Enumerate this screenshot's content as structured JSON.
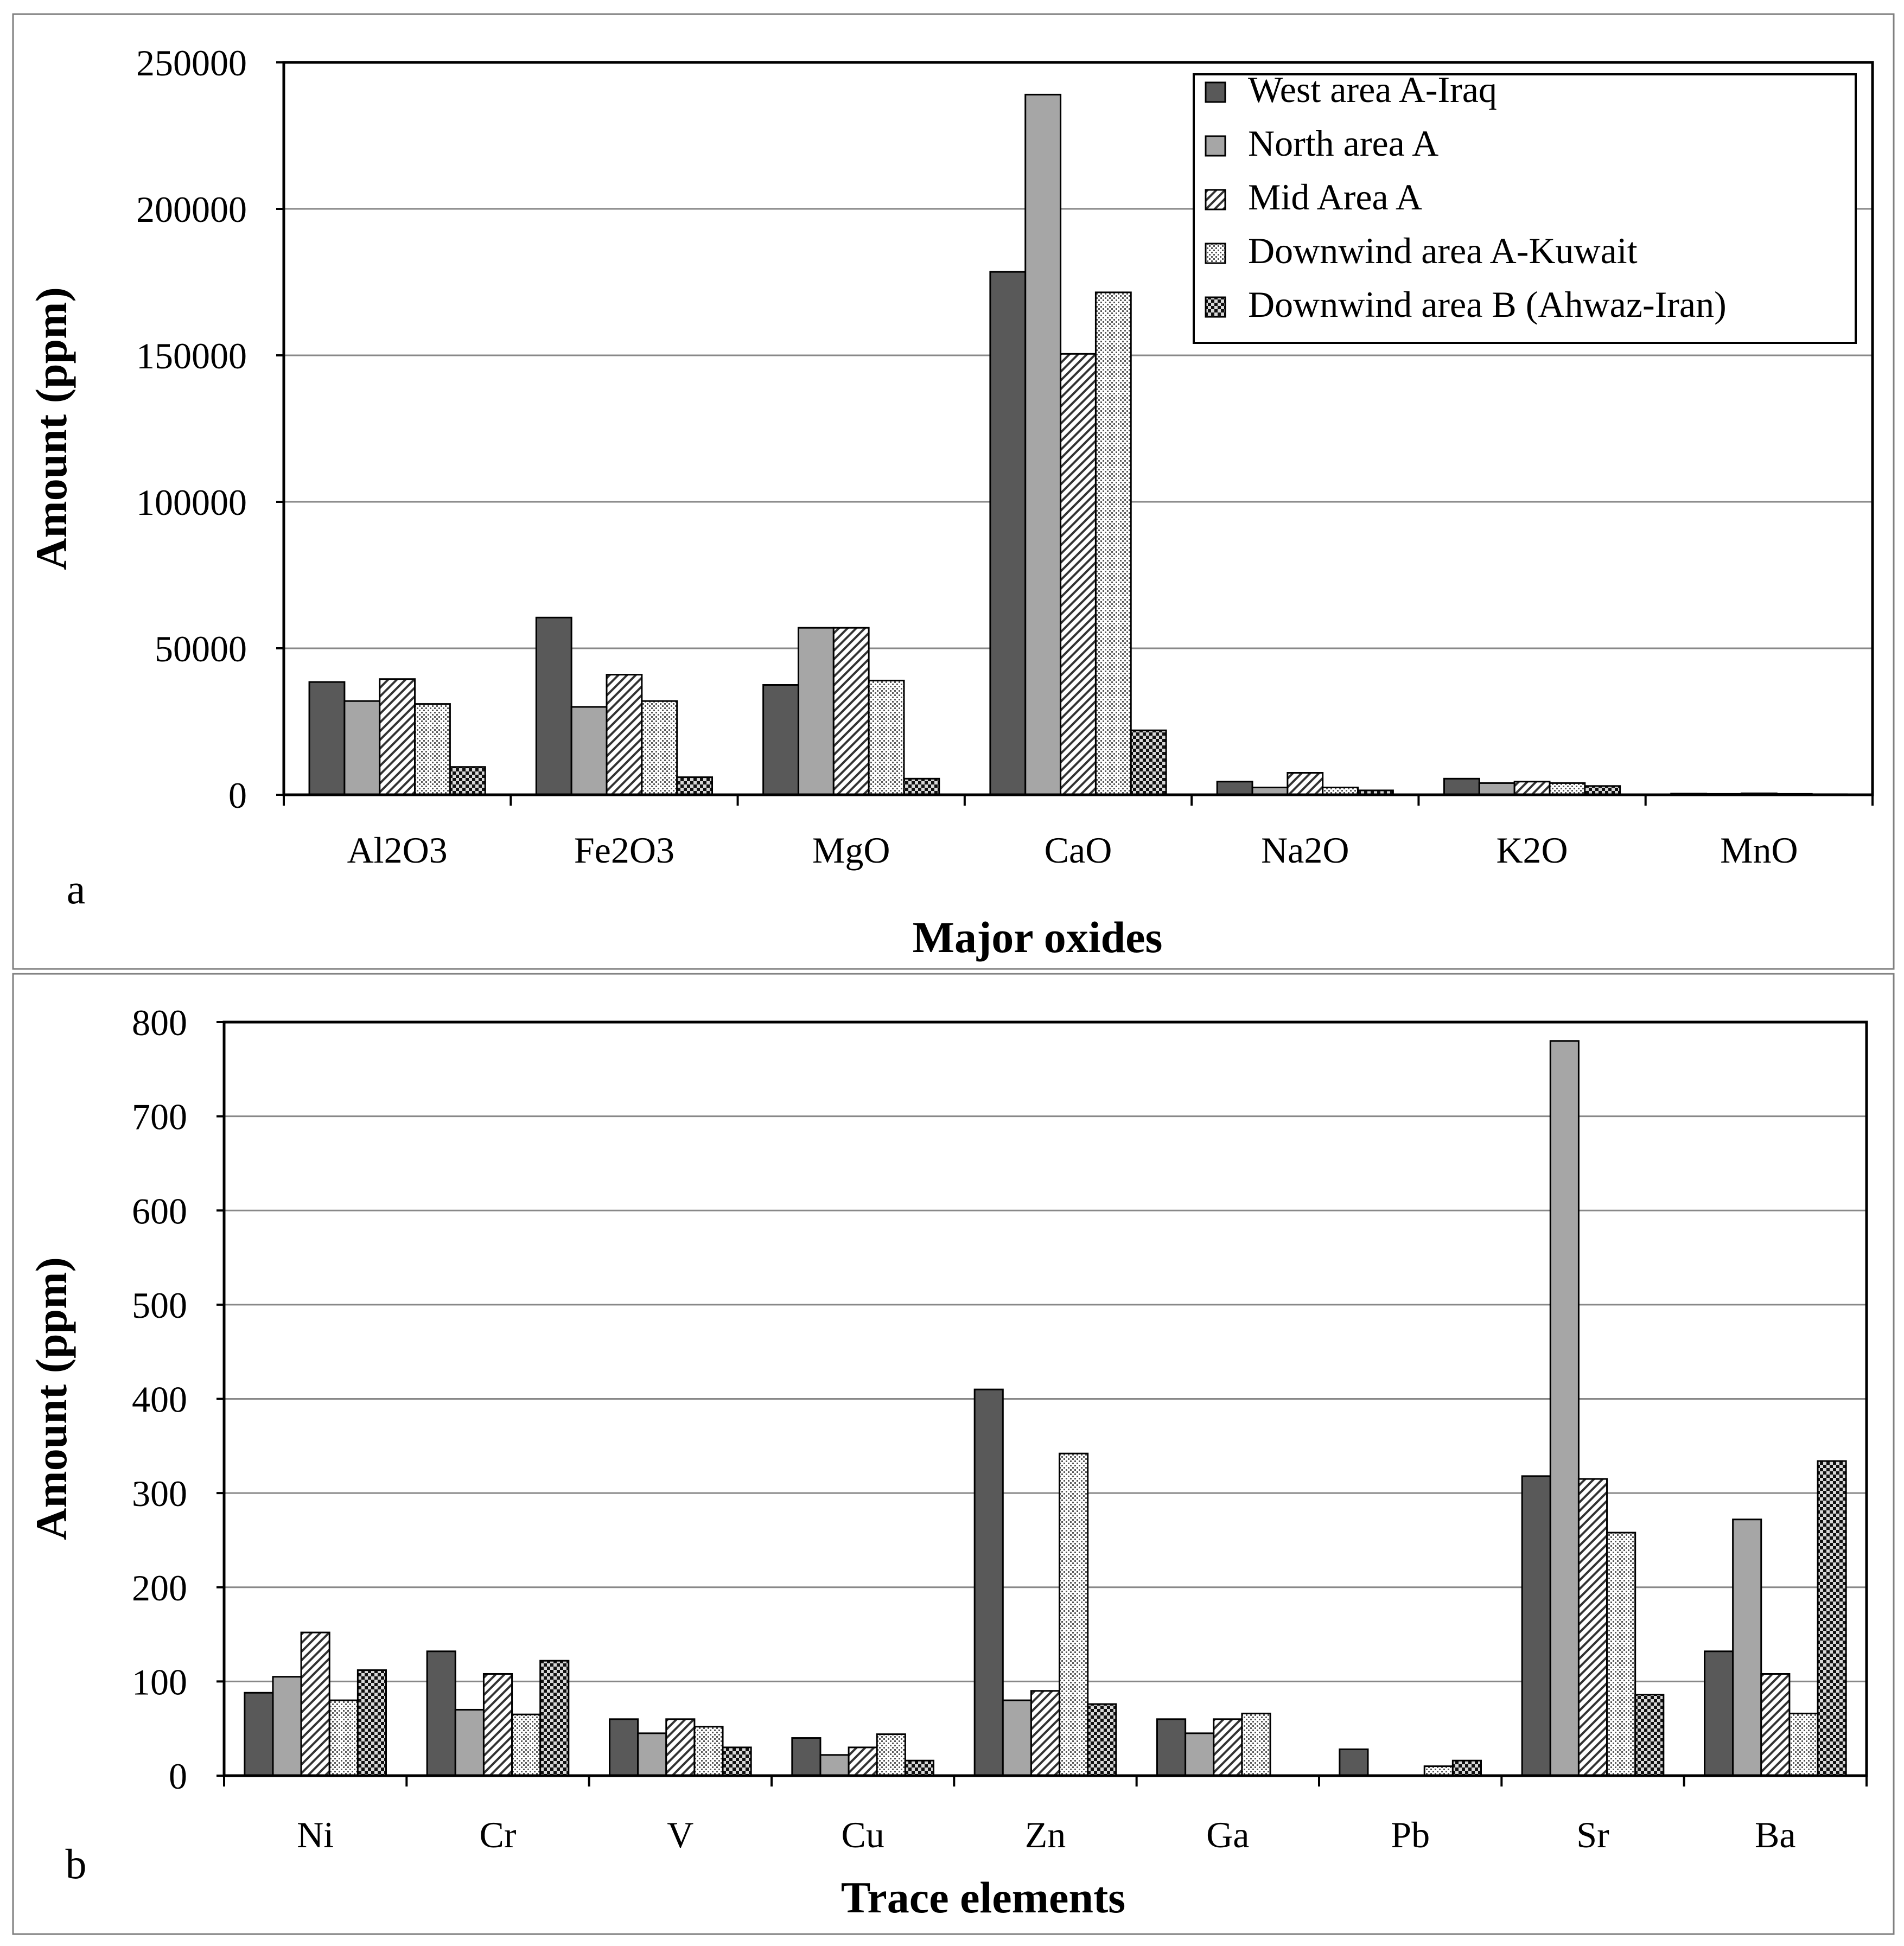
{
  "series_names": [
    "West area A-Iraq",
    "North area A",
    "Mid Area A",
    "Downwind area A-Kuwait",
    "Downwind area B (Ahwaz-Iran)"
  ],
  "series_fills": [
    "#595959",
    "#a6a6a6",
    "hatch-diagonal",
    "dots-fine",
    "checker-dark"
  ],
  "chart_data": [
    {
      "type": "bar",
      "panel_label": "a",
      "title": "",
      "xlabel": "Major oxides",
      "ylabel": "Amount (ppm)",
      "ylim": [
        0,
        250000
      ],
      "yticks": [
        "0",
        "50000",
        "100000",
        "150000",
        "200000",
        "250000"
      ],
      "grid": true,
      "legend": "top-right",
      "categories": [
        "Al2O3",
        "Fe2O3",
        "MgO",
        "CaO",
        "Na2O",
        "K2O",
        "MnO"
      ],
      "series": [
        {
          "name": "West area A-Iraq",
          "values": [
            38500,
            60500,
            37500,
            178500,
            4500,
            5500,
            400
          ]
        },
        {
          "name": "North area A",
          "values": [
            32000,
            30000,
            57000,
            239000,
            2500,
            4000,
            300
          ]
        },
        {
          "name": "Mid Area A",
          "values": [
            39500,
            41000,
            57000,
            150500,
            7500,
            4500,
            500
          ]
        },
        {
          "name": "Downwind area A-Kuwait",
          "values": [
            31000,
            32000,
            39000,
            171500,
            2500,
            4000,
            300
          ]
        },
        {
          "name": "Downwind area B (Ahwaz-Iran)",
          "values": [
            9500,
            6000,
            5500,
            22000,
            1500,
            3000,
            200
          ]
        }
      ]
    },
    {
      "type": "bar",
      "panel_label": "b",
      "title": "",
      "xlabel": "Trace elements",
      "ylabel": "Amount (ppm)",
      "ylim": [
        0,
        800
      ],
      "yticks": [
        "0",
        "100",
        "200",
        "300",
        "400",
        "500",
        "600",
        "700",
        "800"
      ],
      "grid": true,
      "legend": "none",
      "categories": [
        "Ni",
        "Cr",
        "V",
        "Cu",
        "Zn",
        "Ga",
        "Pb",
        "Sr",
        "Ba"
      ],
      "series": [
        {
          "name": "West area A-Iraq",
          "values": [
            88,
            132,
            60,
            40,
            410,
            60,
            28,
            318,
            132
          ]
        },
        {
          "name": "North area A",
          "values": [
            105,
            70,
            45,
            22,
            80,
            45,
            0,
            780,
            272
          ]
        },
        {
          "name": "Mid Area A",
          "values": [
            152,
            108,
            60,
            30,
            90,
            60,
            0,
            315,
            108
          ]
        },
        {
          "name": "Downwind area A-Kuwait",
          "values": [
            80,
            65,
            52,
            44,
            342,
            66,
            10,
            258,
            66
          ]
        },
        {
          "name": "Downwind area B (Ahwaz-Iran)",
          "values": [
            112,
            122,
            30,
            16,
            76,
            0,
            16,
            86,
            334
          ]
        }
      ]
    }
  ]
}
